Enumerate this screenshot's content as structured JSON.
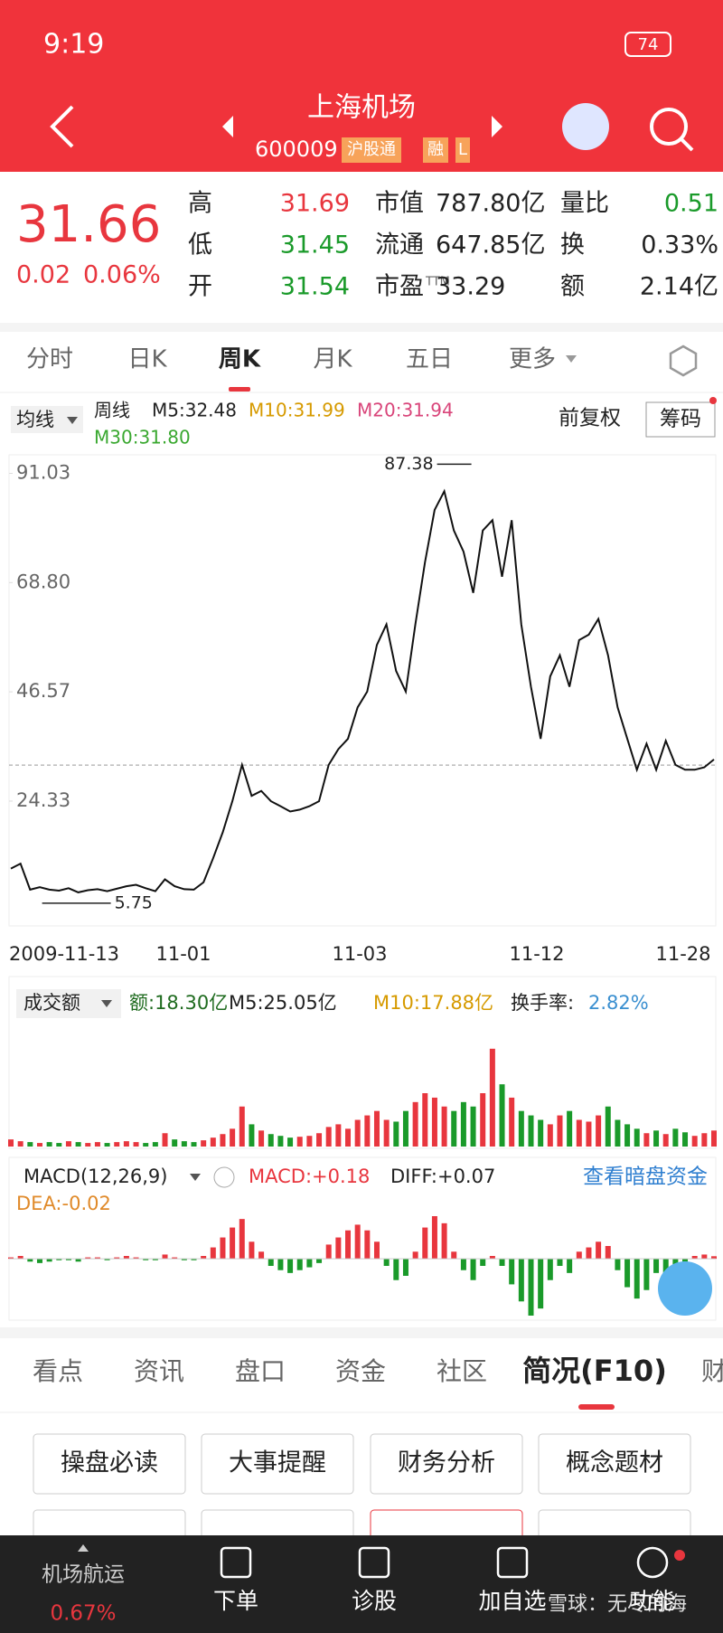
{
  "status": {
    "time": "9:19",
    "battery": "74"
  },
  "header": {
    "title": "上海机场",
    "code": "600009",
    "tags": [
      "沪股通",
      "融",
      "L"
    ]
  },
  "quote": {
    "price": "31.66",
    "change": "0.02",
    "pct": "0.06%",
    "stats": [
      {
        "label": "高",
        "value": "31.69"
      },
      {
        "label": "市值",
        "value": "787.80亿"
      },
      {
        "label": "量比",
        "value": "0.51"
      },
      {
        "label": "低",
        "value": "31.45"
      },
      {
        "label": "流通",
        "value": "647.85亿"
      },
      {
        "label": "换",
        "value": "0.33%"
      },
      {
        "label": "开",
        "value": "31.54"
      },
      {
        "label": "市盈",
        "sup": "TTM",
        "value": "33.29"
      },
      {
        "label": "额",
        "value": "2.14亿"
      }
    ]
  },
  "tabs": [
    "分时",
    "日K",
    "周K",
    "月K",
    "五日",
    "更多"
  ],
  "legend": {
    "ma": "均线",
    "period": "周线",
    "m5": "M5:32.48",
    "m10": "M10:31.99",
    "m20": "M20:31.94",
    "m30": "M30:31.80",
    "adjust": "前复权",
    "chips": "筹码"
  },
  "price_chart": {
    "type": "line",
    "color": "#111111",
    "ylim": [
      -1.07,
      94.8
    ],
    "yticks": [
      24.33,
      46.57,
      {
        "value": 68.8,
        "label": "68.80"
      },
      91.03
    ],
    "x_labels": [
      "2009-11-13",
      "11-01",
      "11-03",
      "11-12",
      "11-28"
    ],
    "max_label": "87.38",
    "min_label": "5.75",
    "values": [
      10.6,
      11.6,
      6.3,
      6.8,
      6.3,
      6.1,
      6.6,
      5.75,
      6.2,
      6.4,
      6.0,
      6.5,
      7.0,
      7.3,
      6.6,
      6.0,
      8.4,
      7.0,
      6.4,
      6.3,
      7.8,
      12.7,
      18.0,
      24.3,
      31.7,
      25.4,
      26.4,
      24.3,
      23.3,
      22.2,
      22.6,
      23.3,
      24.3,
      31.7,
      34.9,
      37.0,
      43.4,
      46.6,
      56.1,
      60.3,
      50.8,
      46.6,
      60.3,
      73.0,
      83.6,
      87.38,
      79.4,
      75.1,
      66.7,
      79.4,
      81.5,
      70.0,
      81.5,
      60.3,
      47.6,
      37.0,
      49.7,
      54.0,
      47.6,
      57.1,
      58.2,
      61.4,
      54.0,
      43.4,
      37.0,
      30.7,
      36.0,
      30.7,
      36.6,
      31.7,
      30.7,
      30.7,
      31.2,
      32.8
    ]
  },
  "volume_chart": {
    "type": "bar",
    "title": "成交额",
    "amount": "额:18.30亿",
    "m5": "M5:25.05亿",
    "m10": "M10:17.88亿",
    "turnover_label": "换手率:",
    "turnover": "2.82%",
    "ylim": [
      0,
      120
    ],
    "up_color": "#e8363e",
    "down_color": "#1a9a2a",
    "values": [
      8,
      6,
      5,
      4,
      5,
      4,
      6,
      5,
      4,
      5,
      4,
      5,
      6,
      5,
      4,
      5,
      15,
      8,
      6,
      5,
      7,
      10,
      14,
      20,
      45,
      25,
      18,
      14,
      12,
      10,
      11,
      12,
      15,
      22,
      25,
      20,
      30,
      35,
      40,
      30,
      28,
      40,
      50,
      60,
      55,
      45,
      40,
      50,
      45,
      60,
      110,
      70,
      55,
      40,
      35,
      30,
      25,
      35,
      40,
      30,
      28,
      35,
      45,
      30,
      25,
      20,
      15,
      18,
      14,
      20,
      16,
      12,
      15,
      18
    ]
  },
  "macd_chart": {
    "type": "bar",
    "title": "MACD(12,26,9)",
    "macd": "MACD:+0.18",
    "diff": "DIFF:+0.07",
    "dea": "DEA:-0.02",
    "link": "查看暗盘资金",
    "ylim": [
      -4,
      3
    ],
    "up_color": "#e8363e",
    "down_color": "#1a9a2a",
    "values": [
      0.1,
      0.2,
      -0.2,
      -0.3,
      -0.2,
      -0.1,
      -0.1,
      -0.2,
      0.1,
      0.1,
      -0.1,
      0.1,
      0.2,
      0.1,
      -0.1,
      -0.1,
      0.3,
      0.1,
      -0.1,
      -0.1,
      0.2,
      0.8,
      1.5,
      2.2,
      2.8,
      1.2,
      0.5,
      -0.5,
      -0.8,
      -1.0,
      -0.8,
      -0.6,
      -0.3,
      1.0,
      1.5,
      2.0,
      2.4,
      2.0,
      1.2,
      -0.5,
      -1.5,
      -1.2,
      0.5,
      2.2,
      3.0,
      2.5,
      0.5,
      -0.8,
      -1.5,
      -0.5,
      0.2,
      -0.5,
      -1.8,
      -3.0,
      -4.0,
      -3.5,
      -1.5,
      -0.5,
      -1.0,
      0.5,
      0.8,
      1.2,
      0.9,
      -0.8,
      -2.0,
      -2.8,
      -2.2,
      -1.0,
      -1.5,
      -0.5,
      -0.3,
      0.2,
      0.3,
      0.18
    ]
  },
  "info_tabs": [
    "看点",
    "资讯",
    "盘口",
    "资金",
    "社区",
    "简况(F10)",
    "财"
  ],
  "buttons": [
    "操盘必读",
    "大事提醒",
    "财务分析",
    "概念题材"
  ],
  "nav": {
    "sector": "机场航运",
    "sector_pct": "0.67%",
    "items": [
      "下单",
      "诊股",
      "加自选",
      "功能"
    ],
    "watermark": "雪球：无尽的海"
  }
}
